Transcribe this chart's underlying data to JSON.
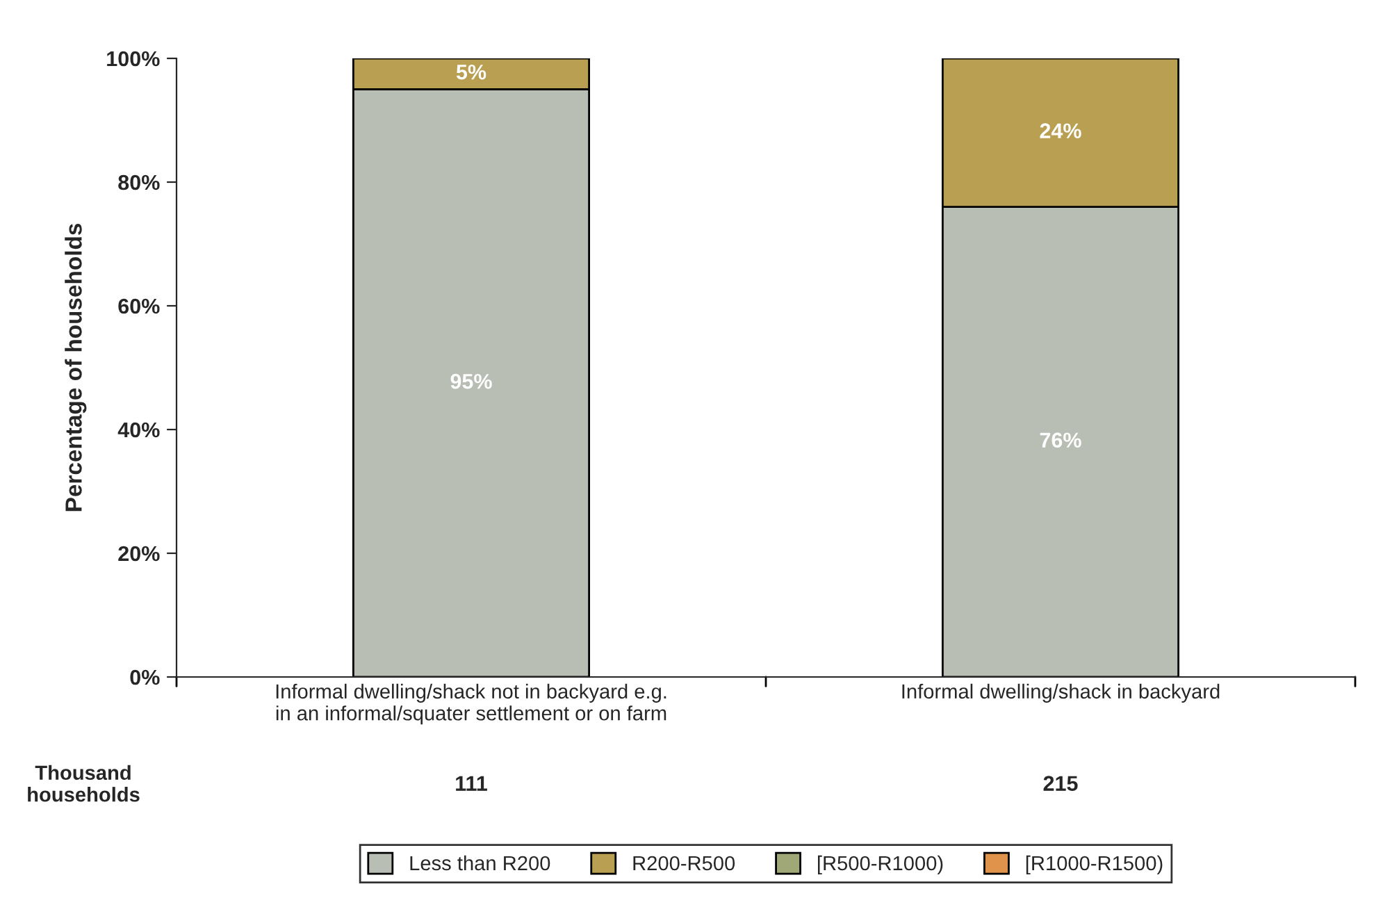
{
  "chart_data": {
    "type": "bar",
    "stacked": true,
    "ylabel": "Percentage of households",
    "categories": [
      "Informal dwelling/shack not in backyard e.g. in an informal/squater settlement or on farm",
      "Informal dwelling/shack in backyard"
    ],
    "series": [
      {
        "name": "Less than R200",
        "color": "#b8beb3",
        "values": [
          95,
          76
        ],
        "value_labels": [
          "95%",
          "76%"
        ]
      },
      {
        "name": "R200-R500",
        "color": "#b89f52",
        "values": [
          5,
          24
        ],
        "value_labels": [
          "5%",
          "24%"
        ]
      },
      {
        "name": "[R500-R1000)",
        "color": "#a0a878",
        "values": [
          0,
          0
        ],
        "value_labels": [
          null,
          null
        ]
      },
      {
        "name": "[R1000-R1500)",
        "color": "#e0934a",
        "values": [
          0,
          0
        ],
        "value_labels": [
          null,
          null
        ]
      }
    ],
    "ylim": [
      0,
      100
    ],
    "yticks": [
      {
        "value": 0,
        "label": "0%"
      },
      {
        "value": 20,
        "label": "20%"
      },
      {
        "value": 40,
        "label": "40%"
      },
      {
        "value": 60,
        "label": "60%"
      },
      {
        "value": 80,
        "label": "80%"
      },
      {
        "value": 100,
        "label": "100%"
      }
    ],
    "grid": false,
    "legend": "bottom",
    "annotations": [
      "Thousand households",
      "111",
      "215"
    ]
  }
}
